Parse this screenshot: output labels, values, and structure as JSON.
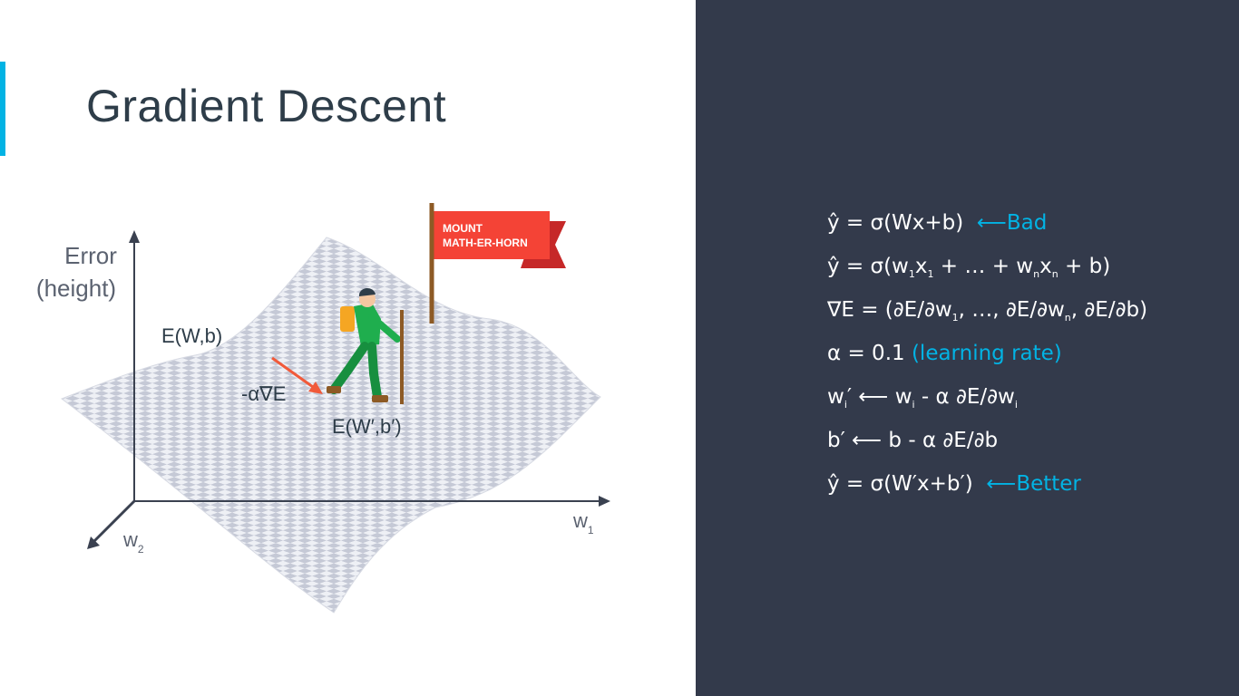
{
  "slide": {
    "title": "Gradient Descent"
  },
  "diagram": {
    "axis_error_line1": "Error",
    "axis_error_line2": "(height)",
    "axis_w1_base": "w",
    "axis_w1_sub": "1",
    "axis_w2_base": "w",
    "axis_w2_sub": "2",
    "point_label": "E(W,b)",
    "step_label": "-α∇E",
    "new_point_label": "E(W′,b′)",
    "flag_line1": "MOUNT",
    "flag_line2": "MATH-ER-HORN"
  },
  "formulas": {
    "f1_main": "ŷ = σ(Wx+b)",
    "f1_note": "Bad",
    "f2_a": "ŷ = σ(w",
    "f2_s1": "1",
    "f2_b": "x",
    "f2_s2": "1",
    "f2_c": " + … + w",
    "f2_s3": "n",
    "f2_d": "x",
    "f2_s4": "n",
    "f2_e": " + b)",
    "f3_a": "∇E = (∂E/∂w",
    "f3_s1": "1",
    "f3_b": ", …, ∂E/∂w",
    "f3_s2": "n",
    "f3_c": ", ∂E/∂b)",
    "f4_main": "α = 0.1",
    "f4_note": "(learning rate)",
    "f5_a": "w",
    "f5_s1": "i",
    "f5_b": "′ ⟵ w",
    "f5_s2": "i",
    "f5_c": " - α ∂E/∂w",
    "f5_s3": "i",
    "f6_main": "b′ ⟵ b - α ∂E/∂b",
    "f7_main": "ŷ = σ(W′x+b′)",
    "f7_note": "Better"
  },
  "colors": {
    "accent": "#02b3e4",
    "title": "#2e3d49",
    "dark_panel": "#333a4b",
    "arrow": "#f15a3a",
    "flag": "#f44336"
  }
}
